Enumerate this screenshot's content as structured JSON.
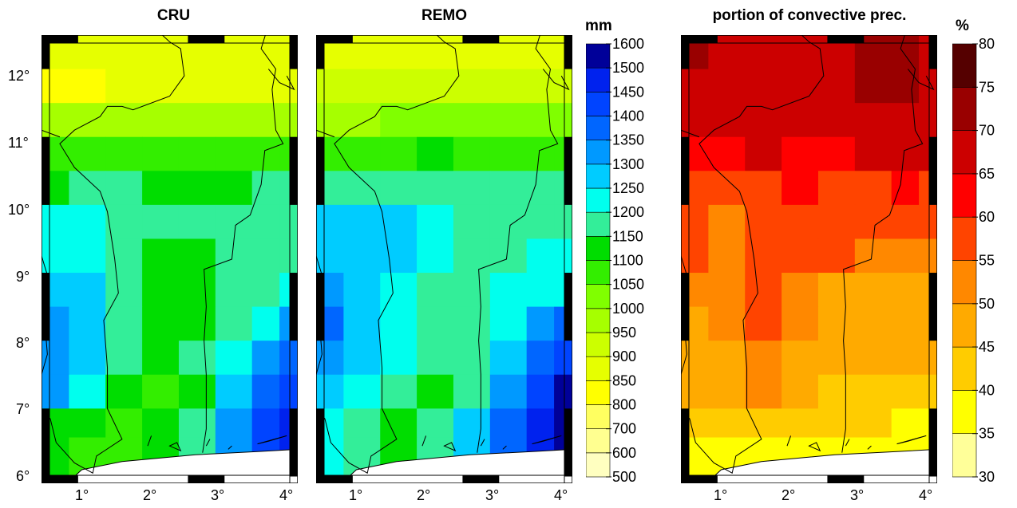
{
  "panels": [
    {
      "title": "CRU",
      "type": "precip"
    },
    {
      "title": "REMO",
      "type": "precip"
    },
    {
      "title": "portion of convective prec.",
      "type": "conv"
    }
  ],
  "lat_labels": [
    "6°",
    "7°",
    "8°",
    "9°",
    "10°",
    "11°",
    "12°"
  ],
  "lon_labels": [
    "1°",
    "2°",
    "3°",
    "4°"
  ],
  "colorbar_precip": {
    "unit": "mm",
    "ticks": [
      "500",
      "600",
      "700",
      "800",
      "850",
      "900",
      "950",
      "1000",
      "1050",
      "1100",
      "1150",
      "1200",
      "1250",
      "1300",
      "1350",
      "1400",
      "1450",
      "1500",
      "1600"
    ],
    "colors": [
      "#ffffc0",
      "#ffff90",
      "#ffff60",
      "#ffff00",
      "#e6ff00",
      "#ccff00",
      "#a6ff00",
      "#80ff00",
      "#33ee00",
      "#00dd00",
      "#33ee99",
      "#00ffee",
      "#00ccff",
      "#0099ff",
      "#0066ff",
      "#0044ff",
      "#0022ee",
      "#000099"
    ]
  },
  "colorbar_conv": {
    "unit": "%",
    "ticks": [
      "30",
      "35",
      "40",
      "45",
      "50",
      "55",
      "60",
      "65",
      "70",
      "75",
      "80"
    ],
    "colors": [
      "#ffff99",
      "#ffff00",
      "#ffcc00",
      "#ffaa00",
      "#ff8800",
      "#ff4400",
      "#ff0000",
      "#cc0000",
      "#990000",
      "#550000"
    ]
  },
  "chart_data": {
    "type": "heatmap",
    "x_range_deg_e": [
      0.5,
      4.0
    ],
    "y_range_deg_n": [
      5.9,
      12.5
    ],
    "lon_centers": [
      0.625,
      1.125,
      1.625,
      2.125,
      2.625,
      3.125,
      3.625,
      3.875
    ],
    "lat_centers": [
      12.25,
      11.75,
      11.25,
      10.75,
      10.25,
      9.75,
      9.25,
      8.75,
      8.25,
      7.75,
      7.25,
      6.75,
      6.4
    ],
    "CRU_mm": [
      [
        850,
        850,
        850,
        850,
        850,
        850,
        850,
        850
      ],
      [
        800,
        800,
        850,
        850,
        850,
        850,
        850,
        850
      ],
      [
        950,
        950,
        950,
        950,
        950,
        950,
        950,
        950
      ],
      [
        1050,
        1050,
        1050,
        1050,
        1050,
        1050,
        1050,
        1050
      ],
      [
        1100,
        1150,
        1150,
        1100,
        1100,
        1100,
        1150,
        1150
      ],
      [
        1200,
        1200,
        1150,
        1150,
        1150,
        1150,
        1150,
        1150
      ],
      [
        1200,
        1200,
        1150,
        1100,
        1100,
        1150,
        1150,
        1150
      ],
      [
        1250,
        1250,
        1150,
        1100,
        1100,
        1150,
        1150,
        1200
      ],
      [
        1300,
        1250,
        1150,
        1100,
        1100,
        1150,
        1200,
        1300
      ],
      [
        1300,
        1250,
        1150,
        1100,
        1150,
        1200,
        1300,
        1350
      ],
      [
        1300,
        1200,
        1100,
        1050,
        1100,
        1250,
        1350,
        1400
      ],
      [
        1100,
        1100,
        1050,
        1100,
        1150,
        1300,
        1400,
        1450
      ],
      [
        1100,
        1050,
        1050,
        1100,
        1150,
        1300,
        1400,
        1450
      ]
    ],
    "REMO_mm": [
      [
        850,
        850,
        850,
        850,
        850,
        850,
        850,
        850
      ],
      [
        900,
        900,
        900,
        900,
        900,
        900,
        900,
        900
      ],
      [
        950,
        950,
        1000,
        1000,
        1000,
        1000,
        1000,
        1000
      ],
      [
        1050,
        1050,
        1050,
        1100,
        1050,
        1050,
        1050,
        1050
      ],
      [
        1150,
        1150,
        1150,
        1150,
        1150,
        1150,
        1150,
        1150
      ],
      [
        1250,
        1250,
        1250,
        1200,
        1150,
        1150,
        1150,
        1150
      ],
      [
        1250,
        1250,
        1250,
        1200,
        1150,
        1150,
        1200,
        1200
      ],
      [
        1300,
        1250,
        1200,
        1150,
        1150,
        1200,
        1200,
        1200
      ],
      [
        1350,
        1250,
        1200,
        1150,
        1150,
        1200,
        1300,
        1350
      ],
      [
        1300,
        1250,
        1200,
        1150,
        1150,
        1250,
        1350,
        1400
      ],
      [
        1250,
        1200,
        1150,
        1100,
        1150,
        1300,
        1400,
        1500
      ],
      [
        1200,
        1150,
        1100,
        1150,
        1250,
        1350,
        1450,
        1500
      ],
      [
        1200,
        1150,
        1100,
        1150,
        1250,
        1350,
        1450,
        1500
      ]
    ],
    "convective_pct": [
      [
        72,
        68,
        68,
        68,
        68,
        72,
        72,
        68
      ],
      [
        68,
        68,
        68,
        68,
        68,
        72,
        72,
        68
      ],
      [
        68,
        68,
        68,
        68,
        68,
        68,
        68,
        68
      ],
      [
        62,
        62,
        68,
        62,
        62,
        68,
        68,
        68
      ],
      [
        58,
        58,
        58,
        62,
        58,
        58,
        62,
        58
      ],
      [
        58,
        52,
        58,
        58,
        58,
        58,
        58,
        58
      ],
      [
        58,
        52,
        58,
        58,
        58,
        52,
        52,
        52
      ],
      [
        52,
        52,
        58,
        52,
        48,
        48,
        48,
        48
      ],
      [
        48,
        52,
        58,
        52,
        48,
        48,
        48,
        48
      ],
      [
        48,
        48,
        52,
        48,
        48,
        48,
        48,
        48
      ],
      [
        48,
        48,
        52,
        48,
        42,
        42,
        42,
        42
      ],
      [
        42,
        42,
        42,
        42,
        42,
        42,
        38,
        38
      ],
      [
        38,
        38,
        38,
        38,
        38,
        38,
        38,
        38
      ]
    ]
  }
}
